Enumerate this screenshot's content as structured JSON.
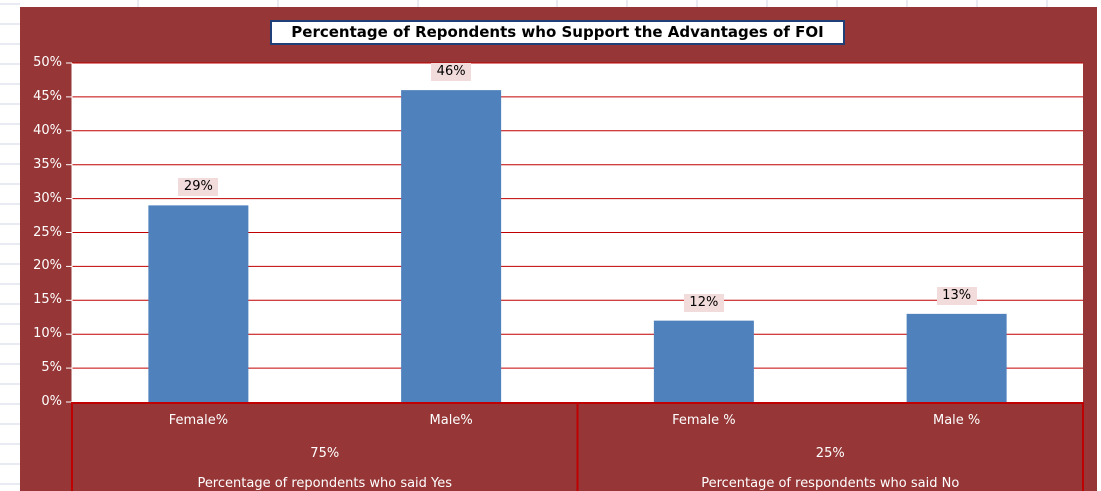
{
  "chart_data": {
    "type": "bar",
    "title": "Percentage of Repondents who Support the Advantages of FOI",
    "xlabel": "",
    "ylabel": "",
    "ylim": [
      0,
      0.5
    ],
    "y_ticks": [
      "0%",
      "5%",
      "10%",
      "15%",
      "20%",
      "25%",
      "30%",
      "35%",
      "40%",
      "45%",
      "50%"
    ],
    "grid": true,
    "legend": "none",
    "bar_color": "#4f81bd",
    "gridline_color": "#c00000",
    "chart_background": "#963636",
    "categories": [
      "Female%",
      "Male%",
      "Female %",
      "Male %"
    ],
    "values": [
      0.29,
      0.46,
      0.12,
      0.13
    ],
    "data_labels": [
      "29%",
      "46%",
      "12%",
      "13%"
    ],
    "groups": [
      {
        "total": "75%",
        "label": "Percentage of repondents who said Yes",
        "size": 2
      },
      {
        "total": "25%",
        "label": "Percentage of respondents  who said No",
        "size": 2
      }
    ]
  }
}
